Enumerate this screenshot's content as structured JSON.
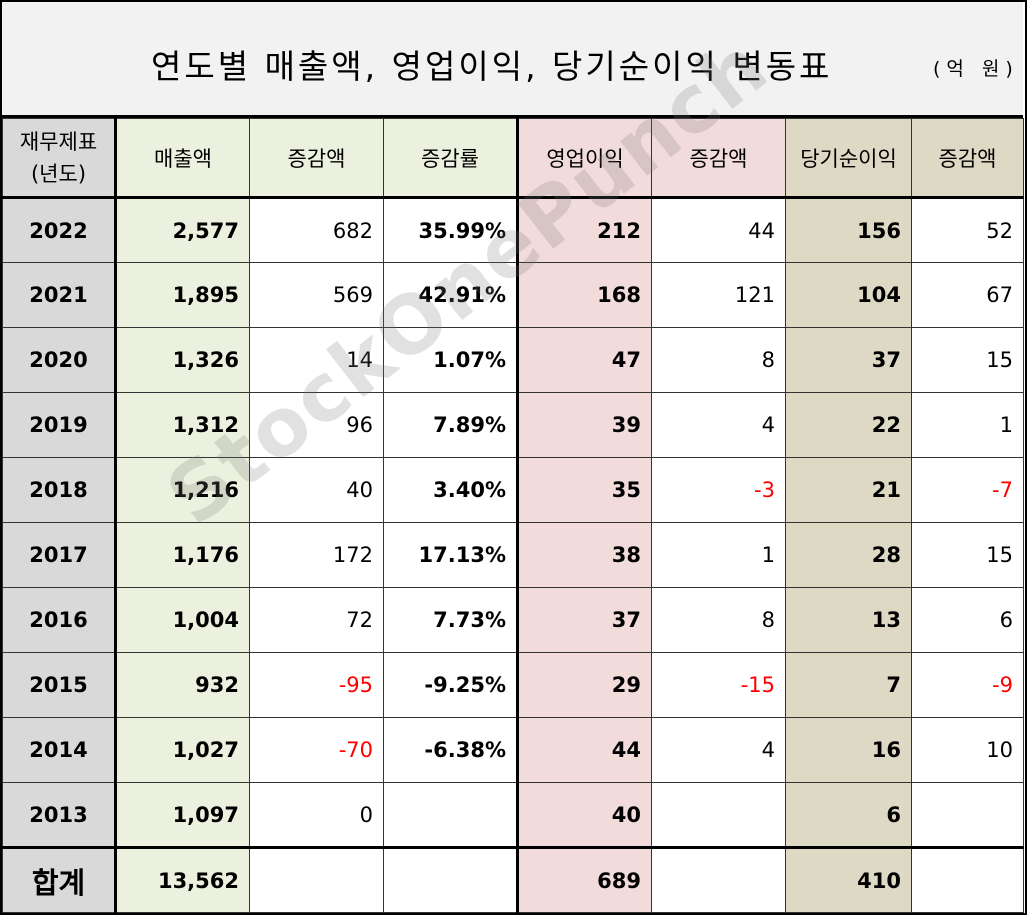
{
  "title": "연도별 매출액, 영업이익, 당기순이익 변동표",
  "unit": "(억 원)",
  "watermark": "StockOnePunch",
  "headers": {
    "year": "재무제표\n(년도)",
    "revenue": "매출액",
    "revenue_change": "증감액",
    "revenue_rate": "증감률",
    "op_income": "영업이익",
    "op_change": "증감액",
    "net_income": "당기순이익",
    "net_change": "증감액"
  },
  "rows": [
    {
      "year": "2022",
      "revenue": "2,577",
      "revenue_change": "682",
      "revenue_rate": "35.99%",
      "op_income": "212",
      "op_change": "44",
      "net_income": "156",
      "net_change": "52"
    },
    {
      "year": "2021",
      "revenue": "1,895",
      "revenue_change": "569",
      "revenue_rate": "42.91%",
      "op_income": "168",
      "op_change": "121",
      "net_income": "104",
      "net_change": "67"
    },
    {
      "year": "2020",
      "revenue": "1,326",
      "revenue_change": "14",
      "revenue_rate": "1.07%",
      "op_income": "47",
      "op_change": "8",
      "net_income": "37",
      "net_change": "15"
    },
    {
      "year": "2019",
      "revenue": "1,312",
      "revenue_change": "96",
      "revenue_rate": "7.89%",
      "op_income": "39",
      "op_change": "4",
      "net_income": "22",
      "net_change": "1"
    },
    {
      "year": "2018",
      "revenue": "1,216",
      "revenue_change": "40",
      "revenue_rate": "3.40%",
      "op_income": "35",
      "op_change": "-3",
      "net_income": "21",
      "net_change": "-7"
    },
    {
      "year": "2017",
      "revenue": "1,176",
      "revenue_change": "172",
      "revenue_rate": "17.13%",
      "op_income": "38",
      "op_change": "1",
      "net_income": "28",
      "net_change": "15"
    },
    {
      "year": "2016",
      "revenue": "1,004",
      "revenue_change": "72",
      "revenue_rate": "7.73%",
      "op_income": "37",
      "op_change": "8",
      "net_income": "13",
      "net_change": "6"
    },
    {
      "year": "2015",
      "revenue": "932",
      "revenue_change": "-95",
      "revenue_rate": "-9.25%",
      "op_income": "29",
      "op_change": "-15",
      "net_income": "7",
      "net_change": "-9"
    },
    {
      "year": "2014",
      "revenue": "1,027",
      "revenue_change": "-70",
      "revenue_rate": "-6.38%",
      "op_income": "44",
      "op_change": "4",
      "net_income": "16",
      "net_change": "10"
    },
    {
      "year": "2013",
      "revenue": "1,097",
      "revenue_change": "0",
      "revenue_rate": "",
      "op_income": "40",
      "op_change": "",
      "net_income": "6",
      "net_change": ""
    }
  ],
  "total": {
    "label": "합계",
    "revenue": "13,562",
    "op_income": "689",
    "net_income": "410"
  },
  "colors": {
    "year_bg": "#d9d9d9",
    "revenue_bg": "#ebf1de",
    "op_bg": "#f2dcdb",
    "net_bg": "#ddd9c4",
    "negative": "#ff0000"
  }
}
